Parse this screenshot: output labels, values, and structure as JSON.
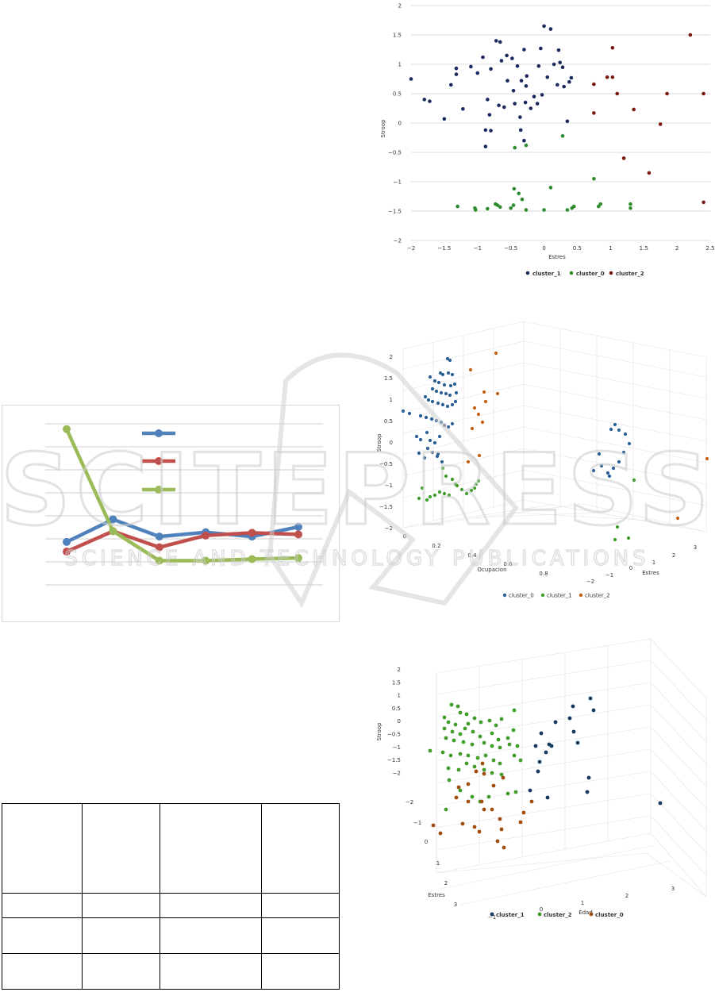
{
  "watermark": {
    "line1": "SCITEPRESS",
    "line2": "SCIENCE AND TECHNOLOGY PUBLICATIONS"
  },
  "chart_data": [
    {
      "type": "scatter",
      "xlabel": "Estres",
      "ylabel": "Stroop",
      "xlim": [
        -2,
        2.5
      ],
      "ylim": [
        -2,
        2
      ],
      "xticks": [
        "−2",
        "−1.5",
        "−1",
        "−0.5",
        "0",
        "0.5",
        "1",
        "1.5",
        "2",
        "2.5"
      ],
      "yticks": [
        "2",
        "1.5",
        "1",
        "0.5",
        "0",
        "−0.5",
        "−1",
        "−1.5",
        "−2"
      ],
      "grid": true,
      "legend_position": "bottom",
      "series": [
        {
          "name": "cluster_1",
          "color": "#1b2a5e",
          "points": [
            [
              -2.0,
              0.75
            ],
            [
              -1.8,
              0.4
            ],
            [
              -1.72,
              0.37
            ],
            [
              -1.5,
              0.07
            ],
            [
              -1.4,
              0.65
            ],
            [
              -1.32,
              0.93
            ],
            [
              -1.32,
              0.83
            ],
            [
              -1.22,
              0.24
            ],
            [
              -1.1,
              0.96
            ],
            [
              -1.0,
              0.85
            ],
            [
              -0.92,
              1.12
            ],
            [
              -0.85,
              0.4
            ],
            [
              -0.82,
              0.14
            ],
            [
              -0.8,
              0.92
            ],
            [
              -0.72,
              1.4
            ],
            [
              -0.68,
              0.3
            ],
            [
              -0.66,
              1.38
            ],
            [
              -0.64,
              1.06
            ],
            [
              -0.6,
              0.27
            ],
            [
              -0.56,
              1.15
            ],
            [
              -0.55,
              0.72
            ],
            [
              -0.48,
              1.1
            ],
            [
              -0.46,
              0.55
            ],
            [
              -0.44,
              0.33
            ],
            [
              -0.4,
              0.97
            ],
            [
              -0.36,
              0.1
            ],
            [
              -0.34,
              0.72
            ],
            [
              -0.3,
              1.25
            ],
            [
              -0.28,
              0.35
            ],
            [
              -0.27,
              0.63
            ],
            [
              -0.26,
              0.8
            ],
            [
              -0.2,
              0.25
            ],
            [
              -0.15,
              0.45
            ],
            [
              -0.1,
              0.33
            ],
            [
              -0.08,
              0.97
            ],
            [
              -0.05,
              1.27
            ],
            [
              -0.03,
              0.48
            ],
            [
              0.0,
              1.65
            ],
            [
              0.05,
              0.78
            ],
            [
              0.1,
              1.6
            ],
            [
              0.15,
              1.0
            ],
            [
              0.2,
              0.65
            ],
            [
              0.22,
              1.24
            ],
            [
              0.24,
              1.03
            ],
            [
              0.28,
              0.95
            ],
            [
              0.3,
              0.62
            ],
            [
              0.38,
              0.7
            ],
            [
              0.41,
              0.77
            ],
            [
              0.35,
              0.03
            ],
            [
              -0.88,
              -0.12
            ],
            [
              -0.88,
              -0.4
            ],
            [
              -0.8,
              -0.13
            ],
            [
              -0.35,
              -0.12
            ],
            [
              -0.3,
              -0.3
            ]
          ]
        },
        {
          "name": "cluster_0",
          "color": "#2e8b2e",
          "points": [
            [
              -1.3,
              -1.42
            ],
            [
              -1.04,
              -1.45
            ],
            [
              -1.03,
              -1.48
            ],
            [
              -0.85,
              -1.46
            ],
            [
              -0.73,
              -1.38
            ],
            [
              -0.7,
              -1.4
            ],
            [
              -0.66,
              -1.43
            ],
            [
              -0.5,
              -1.45
            ],
            [
              -0.46,
              -1.4
            ],
            [
              -0.45,
              -1.12
            ],
            [
              -0.38,
              -1.2
            ],
            [
              -0.33,
              -1.3
            ],
            [
              -0.27,
              -1.48
            ],
            [
              0.0,
              -1.48
            ],
            [
              0.1,
              -1.1
            ],
            [
              0.35,
              -1.48
            ],
            [
              0.42,
              -1.45
            ],
            [
              0.45,
              -1.42
            ],
            [
              0.75,
              -0.95
            ],
            [
              0.82,
              -1.42
            ],
            [
              0.85,
              -1.38
            ],
            [
              1.3,
              -1.38
            ],
            [
              1.3,
              -1.45
            ],
            [
              -0.44,
              -0.42
            ],
            [
              -0.27,
              -0.38
            ],
            [
              0.28,
              -0.22
            ]
          ]
        },
        {
          "name": "cluster_2",
          "color": "#7a1a10",
          "points": [
            [
              0.75,
              0.66
            ],
            [
              0.75,
              0.17
            ],
            [
              0.95,
              0.78
            ],
            [
              1.03,
              0.78
            ],
            [
              1.03,
              1.28
            ],
            [
              1.1,
              0.5
            ],
            [
              1.2,
              -0.6
            ],
            [
              1.35,
              0.23
            ],
            [
              1.58,
              -0.85
            ],
            [
              1.75,
              -0.02
            ],
            [
              1.85,
              0.5
            ],
            [
              2.2,
              1.5
            ],
            [
              2.4,
              0.5
            ],
            [
              2.4,
              -1.35
            ]
          ]
        }
      ]
    },
    {
      "type": "line",
      "series": [
        {
          "name": "",
          "color": "#4f81bd",
          "values": [
            0.3,
            0.72,
            0.4,
            0.48,
            0.4,
            0.58
          ]
        },
        {
          "name": "",
          "color": "#c0504d",
          "values": [
            0.12,
            0.5,
            0.2,
            0.42,
            0.47,
            0.44
          ]
        },
        {
          "name": "",
          "color": "#9bbb59",
          "values": [
            2.4,
            0.5,
            -0.05,
            -0.05,
            -0.02,
            0.0
          ]
        }
      ]
    },
    {
      "type": "scatter",
      "dimensions": 3,
      "xlabel": "Ocupacion",
      "ylabel": "Estres",
      "zlabel": "Stroop",
      "zticks": [
        "2",
        "1.5",
        "1",
        "0.5",
        "0",
        "−0.5",
        "−1",
        "−1.5",
        "−2"
      ],
      "xticks": [
        "0",
        "0.2",
        "0.4",
        "0.6",
        "0.8"
      ],
      "yticks": [
        "3",
        "2",
        "1",
        "0",
        "−1",
        "−2"
      ],
      "legend_position": "bottom",
      "series": [
        {
          "name": "cluster_0",
          "color": "#2c5f94"
        },
        {
          "name": "cluster_1",
          "color": "#3f9e2c"
        },
        {
          "name": "cluster_2",
          "color": "#c46112"
        }
      ]
    },
    {
      "type": "scatter",
      "dimensions": 3,
      "xlabel": "Estres",
      "ylabel": "Edad",
      "zlabel": "Stroop",
      "zticks": [
        "2",
        "1.5",
        "1",
        "0.5",
        "0",
        "−0.5",
        "−1",
        "−1.5",
        "−2"
      ],
      "xticks": [
        "−2",
        "−1",
        "0",
        "1",
        "2",
        "3"
      ],
      "yticks": [
        "−1",
        "0",
        "1",
        "2",
        "3"
      ],
      "legend_position": "bottom",
      "series": [
        {
          "name": "cluster_1",
          "color": "#14385e"
        },
        {
          "name": "cluster_2",
          "color": "#3f9e2c"
        },
        {
          "name": "cluster_0",
          "color": "#a34c10"
        }
      ]
    }
  ]
}
